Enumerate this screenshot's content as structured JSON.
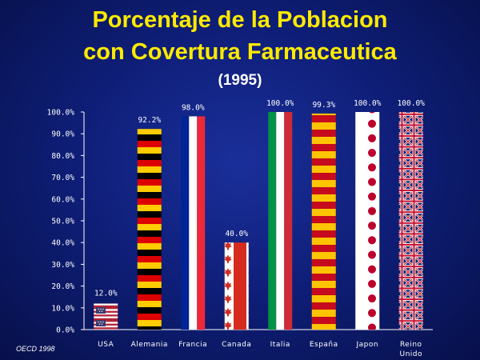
{
  "title_line1": "Porcentaje de la Poblacion",
  "title_line2": "con Covertura Farmaceutica",
  "subtitle": "(1995)",
  "source_note": "OECD 1998",
  "chart_data": {
    "type": "bar",
    "title": "Porcentaje de la Poblacion con Covertura Farmaceutica",
    "subtitle": "(1995)",
    "categories": [
      "USA",
      "Alemania",
      "Francia",
      "Canada",
      "Italia",
      "España",
      "Japon",
      "Reino Unido"
    ],
    "values": [
      12.0,
      92.2,
      98.0,
      40.0,
      100.0,
      99.3,
      100.0,
      100.0
    ],
    "data_labels": [
      "12.0%",
      "92.2%",
      "98.0%",
      "40.0%",
      "100.0%",
      "99.3%",
      "100.0%",
      "100.0%"
    ],
    "ytick_labels": [
      "0.0%",
      "10.0%",
      "20.0%",
      "30.0%",
      "40.0%",
      "50.0%",
      "60.0%",
      "70.0%",
      "80.0%",
      "90.0%",
      "100.0%"
    ],
    "ylim": [
      0,
      100
    ],
    "xlabel": "",
    "ylabel": "",
    "grid": false,
    "bar_fill": [
      "us-flag",
      "german-flag",
      "french-flag",
      "canadian-flag",
      "italian-flag",
      "spanish-flag",
      "japanese-flag",
      "uk-flag"
    ]
  },
  "colors": {
    "title": "#ffea00",
    "background": "#0f1f7a",
    "axis": "#ffffff"
  }
}
